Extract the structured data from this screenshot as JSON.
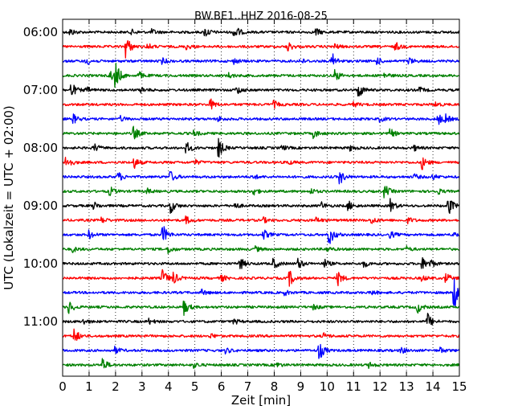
{
  "chart_data": {
    "type": "line",
    "title": "BW.BE1..HHZ 2016-08-25",
    "xlabel": "Zeit  [min]",
    "ylabel": "UTC (Lokalzeit = UTC + 02:00)",
    "xlim": [
      0,
      15
    ],
    "x_ticks": [
      "0",
      "1",
      "2",
      "3",
      "4",
      "5",
      "6",
      "7",
      "8",
      "9",
      "10",
      "11",
      "12",
      "13",
      "14",
      "15"
    ],
    "y_tick_labels": [
      "06:00",
      "07:00",
      "08:00",
      "09:00",
      "10:00",
      "11:00"
    ],
    "grid": "vertical dotted",
    "trace_colors": [
      "#000000",
      "#ff0000",
      "#0000ff",
      "#008000"
    ],
    "traces": [
      {
        "time": "06:00",
        "color": "#000000",
        "events": [
          [
            0.3,
            4
          ],
          [
            2.6,
            3
          ],
          [
            3.4,
            3
          ],
          [
            5.4,
            6
          ],
          [
            6.5,
            10
          ],
          [
            9.6,
            4
          ]
        ]
      },
      {
        "time": "06:15",
        "color": "#ff0000",
        "events": [
          [
            2.4,
            14
          ],
          [
            3.2,
            4
          ],
          [
            4.7,
            3
          ],
          [
            8.5,
            7
          ],
          [
            10.3,
            3
          ],
          [
            12.6,
            5
          ]
        ]
      },
      {
        "time": "06:30",
        "color": "#0000ff",
        "events": [
          [
            0.9,
            5
          ],
          [
            3.8,
            3
          ],
          [
            6.5,
            3
          ],
          [
            9.0,
            3
          ],
          [
            10.2,
            9
          ],
          [
            11.9,
            4
          ],
          [
            13.1,
            4
          ]
        ]
      },
      {
        "time": "06:45",
        "color": "#008000",
        "events": [
          [
            1.8,
            6
          ],
          [
            2.0,
            16
          ],
          [
            2.9,
            4
          ],
          [
            6.3,
            3
          ],
          [
            10.3,
            8
          ],
          [
            12.2,
            3
          ]
        ]
      },
      {
        "time": "07:00",
        "color": "#000000",
        "events": [
          [
            0.35,
            8
          ],
          [
            0.9,
            4
          ],
          [
            3.0,
            3
          ],
          [
            6.6,
            5
          ],
          [
            11.2,
            9
          ],
          [
            13.5,
            3
          ]
        ]
      },
      {
        "time": "07:15",
        "color": "#ff0000",
        "events": [
          [
            5.6,
            6
          ],
          [
            8.0,
            4
          ],
          [
            11.0,
            3
          ],
          [
            14.1,
            3
          ]
        ]
      },
      {
        "time": "07:30",
        "color": "#0000ff",
        "events": [
          [
            0.4,
            6
          ],
          [
            2.2,
            3
          ],
          [
            5.9,
            3
          ],
          [
            12.0,
            3
          ],
          [
            14.2,
            7
          ],
          [
            14.5,
            4
          ]
        ]
      },
      {
        "time": "07:45",
        "color": "#008000",
        "events": [
          [
            2.7,
            8
          ],
          [
            5.0,
            3
          ],
          [
            9.5,
            5
          ],
          [
            12.4,
            5
          ]
        ]
      },
      {
        "time": "08:00",
        "color": "#000000",
        "events": [
          [
            1.2,
            5
          ],
          [
            4.7,
            7
          ],
          [
            5.9,
            12
          ],
          [
            8.3,
            3
          ],
          [
            10.9,
            3
          ],
          [
            13.3,
            3
          ]
        ]
      },
      {
        "time": "08:15",
        "color": "#ff0000",
        "events": [
          [
            0.15,
            9
          ],
          [
            2.7,
            7
          ],
          [
            5.0,
            3
          ],
          [
            8.5,
            3
          ],
          [
            13.6,
            8
          ]
        ]
      },
      {
        "time": "08:30",
        "color": "#0000ff",
        "events": [
          [
            2.1,
            6
          ],
          [
            4.1,
            6
          ],
          [
            7.2,
            3
          ],
          [
            10.5,
            8
          ],
          [
            13.3,
            3
          ],
          [
            14.0,
            3
          ]
        ]
      },
      {
        "time": "08:45",
        "color": "#008000",
        "events": [
          [
            1.8,
            5
          ],
          [
            3.2,
            3
          ],
          [
            7.2,
            5
          ],
          [
            9.4,
            3
          ],
          [
            12.2,
            7
          ],
          [
            14.2,
            3
          ]
        ]
      },
      {
        "time": "09:00",
        "color": "#000000",
        "events": [
          [
            1.2,
            4
          ],
          [
            4.1,
            8
          ],
          [
            6.5,
            4
          ],
          [
            9.8,
            4
          ],
          [
            10.8,
            6
          ],
          [
            12.4,
            8
          ],
          [
            14.6,
            11
          ]
        ]
      },
      {
        "time": "09:15",
        "color": "#ff0000",
        "events": [
          [
            1.5,
            3
          ],
          [
            4.7,
            4
          ],
          [
            7.6,
            3
          ],
          [
            9.6,
            3
          ],
          [
            11.7,
            4
          ],
          [
            13.1,
            3
          ]
        ]
      },
      {
        "time": "09:30",
        "color": "#0000ff",
        "events": [
          [
            1.0,
            5
          ],
          [
            3.8,
            11
          ],
          [
            7.6,
            6
          ],
          [
            10.1,
            12
          ],
          [
            12.4,
            4
          ],
          [
            14.8,
            3
          ]
        ]
      },
      {
        "time": "09:45",
        "color": "#008000",
        "events": [
          [
            0.4,
            3
          ],
          [
            4.0,
            5
          ],
          [
            7.3,
            3
          ],
          [
            10.0,
            3
          ],
          [
            13.0,
            3
          ]
        ]
      },
      {
        "time": "10:00",
        "color": "#000000",
        "events": [
          [
            6.7,
            8
          ],
          [
            8.0,
            6
          ],
          [
            8.9,
            7
          ],
          [
            9.9,
            5
          ],
          [
            11.4,
            4
          ],
          [
            13.6,
            7
          ],
          [
            13.9,
            5
          ]
        ]
      },
      {
        "time": "10:15",
        "color": "#ff0000",
        "events": [
          [
            3.8,
            10
          ],
          [
            4.2,
            7
          ],
          [
            6.0,
            4
          ],
          [
            8.6,
            9
          ],
          [
            10.4,
            9
          ],
          [
            13.6,
            3
          ],
          [
            14.5,
            6
          ]
        ]
      },
      {
        "time": "10:30",
        "color": "#0000ff",
        "events": [
          [
            5.3,
            3
          ],
          [
            8.4,
            3
          ],
          [
            11.7,
            3
          ],
          [
            14.8,
            22
          ]
        ]
      },
      {
        "time": "10:45",
        "color": "#008000",
        "events": [
          [
            0.2,
            10
          ],
          [
            4.6,
            9
          ],
          [
            9.5,
            3
          ],
          [
            13.4,
            8
          ]
        ]
      },
      {
        "time": "11:00",
        "color": "#000000",
        "events": [
          [
            0.8,
            3
          ],
          [
            3.3,
            3
          ],
          [
            6.5,
            3
          ],
          [
            13.8,
            10
          ]
        ]
      },
      {
        "time": "11:15",
        "color": "#ff0000",
        "events": [
          [
            0.45,
            9
          ],
          [
            5.6,
            3
          ],
          [
            9.9,
            3
          ]
        ]
      },
      {
        "time": "11:30",
        "color": "#0000ff",
        "events": [
          [
            2.0,
            4
          ],
          [
            6.2,
            3
          ],
          [
            9.7,
            12
          ],
          [
            12.8,
            4
          ],
          [
            14.3,
            3
          ]
        ]
      },
      {
        "time": "11:45",
        "color": "#008000",
        "events": [
          [
            1.5,
            9
          ],
          [
            5.0,
            3
          ],
          [
            8.1,
            3
          ],
          [
            11.6,
            3
          ]
        ]
      }
    ]
  }
}
